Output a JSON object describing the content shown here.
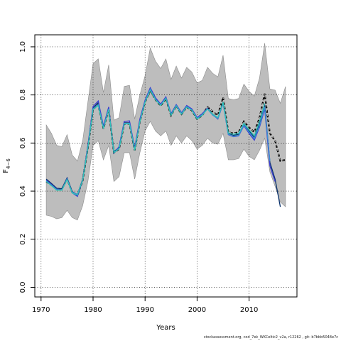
{
  "chart_data": {
    "type": "line",
    "xlabel": "Years",
    "ylabel": "F",
    "ylabel_subscript": "4−6",
    "xlim": [
      1968.8,
      2019.2
    ],
    "ylim": [
      -0.04,
      1.05
    ],
    "x_ticks": [
      1970,
      1980,
      1990,
      2000,
      2010
    ],
    "y_ticks": [
      0.0,
      0.2,
      0.4,
      0.6,
      0.8,
      1.0
    ],
    "grid": "dotted",
    "years": [
      1971,
      1972,
      1973,
      1974,
      1975,
      1976,
      1977,
      1978,
      1979,
      1980,
      1981,
      1982,
      1983,
      1984,
      1985,
      1986,
      1987,
      1988,
      1989,
      1990,
      1991,
      1992,
      1993,
      1994,
      1995,
      1996,
      1997,
      1998,
      1999,
      2000,
      2001,
      2002,
      2003,
      2004,
      2005,
      2006,
      2007,
      2008,
      2009,
      2010,
      2011,
      2012,
      2013,
      2014,
      2015,
      2016,
      2017
    ],
    "ci_upper": [
      0.675,
      0.64,
      0.59,
      0.585,
      0.635,
      0.55,
      0.525,
      0.61,
      0.77,
      0.93,
      0.95,
      0.81,
      0.925,
      0.695,
      0.705,
      0.835,
      0.84,
      0.7,
      0.8,
      0.88,
      0.995,
      0.94,
      0.91,
      0.95,
      0.865,
      0.92,
      0.87,
      0.915,
      0.895,
      0.85,
      0.86,
      0.915,
      0.89,
      0.875,
      0.965,
      0.785,
      0.78,
      0.785,
      0.845,
      0.815,
      0.795,
      0.87,
      1.015,
      0.825,
      0.82,
      0.765,
      0.835
    ],
    "ci_lower": [
      0.3,
      0.295,
      0.285,
      0.29,
      0.32,
      0.29,
      0.28,
      0.34,
      0.44,
      0.59,
      0.61,
      0.53,
      0.59,
      0.44,
      0.46,
      0.56,
      0.56,
      0.45,
      0.56,
      0.65,
      0.69,
      0.65,
      0.63,
      0.65,
      0.59,
      0.63,
      0.6,
      0.63,
      0.61,
      0.575,
      0.59,
      0.62,
      0.6,
      0.595,
      0.64,
      0.53,
      0.53,
      0.535,
      0.575,
      0.545,
      0.53,
      0.57,
      0.62,
      0.48,
      0.42,
      0.355,
      0.335
    ],
    "series": [
      {
        "color": "#000000",
        "dashed": true,
        "values": [
          0.44,
          0.425,
          0.41,
          0.408,
          0.45,
          0.395,
          0.382,
          0.445,
          0.58,
          0.74,
          0.76,
          0.66,
          0.74,
          0.56,
          0.575,
          0.68,
          0.68,
          0.57,
          0.69,
          0.77,
          0.82,
          0.78,
          0.755,
          0.785,
          0.715,
          0.755,
          0.72,
          0.75,
          0.735,
          0.7,
          0.715,
          0.75,
          0.73,
          0.715,
          0.79,
          0.645,
          0.64,
          0.645,
          0.69,
          0.665,
          0.645,
          0.705,
          0.805,
          0.64,
          0.61,
          0.525,
          0.53
        ]
      },
      {
        "color": "#08306b",
        "values": [
          0.45,
          0.432,
          0.412,
          0.41,
          0.455,
          0.398,
          0.385,
          0.45,
          0.586,
          0.745,
          0.768,
          0.664,
          0.745,
          0.565,
          0.58,
          0.684,
          0.684,
          0.575,
          0.694,
          0.775,
          0.826,
          0.784,
          0.76,
          0.789,
          0.72,
          0.758,
          0.724,
          0.754,
          0.74,
          0.704,
          0.72,
          0.744,
          0.72,
          0.704,
          0.77,
          0.64,
          0.632,
          0.636,
          0.68,
          0.65,
          0.624,
          0.68,
          0.76,
          0.52,
          0.45,
          0.335
        ]
      },
      {
        "color": "#3a3ad0",
        "values": [
          0.445,
          0.428,
          0.408,
          0.405,
          0.452,
          0.393,
          0.378,
          0.446,
          0.59,
          0.752,
          0.775,
          0.67,
          0.75,
          0.558,
          0.585,
          0.69,
          0.692,
          0.58,
          0.7,
          0.778,
          0.83,
          0.788,
          0.762,
          0.792,
          0.722,
          0.76,
          0.726,
          0.756,
          0.742,
          0.706,
          0.722,
          0.745,
          0.718,
          0.7,
          0.765,
          0.635,
          0.626,
          0.63,
          0.672,
          0.64,
          0.612,
          0.666,
          0.742,
          0.505,
          0.44
        ]
      },
      {
        "color": "#3a8fd4",
        "values": [
          0.442,
          0.425,
          0.406,
          0.406,
          0.45,
          0.396,
          0.386,
          0.448,
          0.582,
          0.742,
          0.76,
          0.662,
          0.742,
          0.562,
          0.578,
          0.682,
          0.682,
          0.572,
          0.69,
          0.772,
          0.824,
          0.782,
          0.758,
          0.787,
          0.718,
          0.756,
          0.722,
          0.752,
          0.738,
          0.702,
          0.718,
          0.742,
          0.716,
          0.702,
          0.764,
          0.636,
          0.628,
          0.632,
          0.675,
          0.645,
          0.618,
          0.672,
          0.75,
          0.525
        ]
      },
      {
        "color": "#2ec4b6",
        "values": [
          0.44,
          0.423,
          0.404,
          0.404,
          0.448,
          0.392,
          0.384,
          0.446,
          0.58,
          0.74,
          0.756,
          0.66,
          0.74,
          0.56,
          0.576,
          0.68,
          0.68,
          0.57,
          0.688,
          0.77,
          0.82,
          0.78,
          0.756,
          0.785,
          0.716,
          0.754,
          0.72,
          0.75,
          0.736,
          0.7,
          0.716,
          0.742,
          0.72,
          0.706,
          0.77,
          0.642,
          0.636,
          0.64,
          0.682,
          0.655,
          0.63,
          0.69,
          0.765
        ]
      }
    ]
  },
  "footer": "stockassessment.org, cod_7ek_WKCeltic2_v2a, r12262 , git: b7bbb5048e7c"
}
